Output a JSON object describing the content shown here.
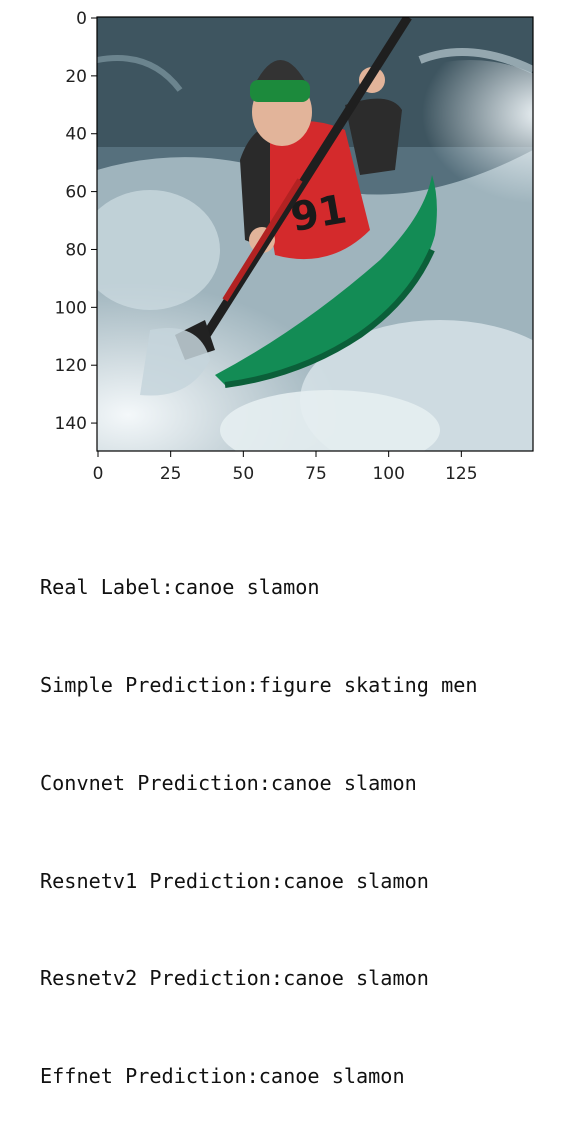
{
  "plot": {
    "x_ticks": [
      "0",
      "25",
      "50",
      "75",
      "100",
      "125"
    ],
    "y_ticks": [
      "0",
      "20",
      "40",
      "60",
      "80",
      "100",
      "120",
      "140"
    ],
    "x_range": [
      0,
      150
    ],
    "y_range": [
      0,
      150
    ],
    "image_content": "kayaker in red life vest with green helmet paddling a green kayak through whitewater"
  },
  "output_lines": [
    "Real Label:canoe slamon",
    "Simple Prediction:figure skating men",
    "Convnet Prediction:canoe slamon",
    "Resnetv1 Prediction:canoe slamon",
    "Resnetv2 Prediction:canoe slamon",
    "Effnet Prediction:canoe slamon"
  ],
  "colors": {
    "water_dark": "#4a5f6b",
    "water_light": "#dfe8ec",
    "vest": "#d8282b",
    "helmet_band": "#1c8a3c",
    "kayak": "#148a55"
  }
}
